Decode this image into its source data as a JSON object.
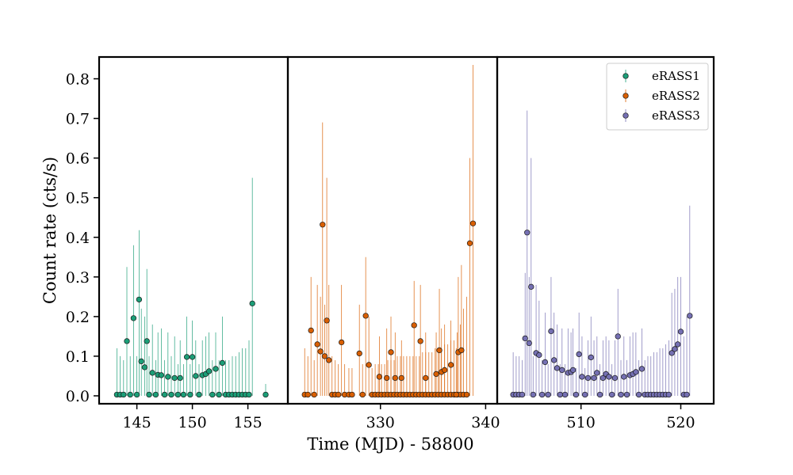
{
  "chart_data": {
    "type": "scatter",
    "xlabel": "Time (MJD) - 58800",
    "ylabel": "Count rate (cts/s)",
    "ylim": [
      -0.02,
      0.855
    ],
    "yticks": [
      0.0,
      0.1,
      0.2,
      0.3,
      0.4,
      0.5,
      0.6,
      0.7,
      0.8
    ],
    "ytick_labels": [
      "0.0",
      "0.1",
      "0.2",
      "0.3",
      "0.4",
      "0.5",
      "0.6",
      "0.7",
      "0.8"
    ],
    "legend_position": "top-right",
    "panels": [
      {
        "series_index": 0,
        "xlim": [
          141.6,
          158.6
        ],
        "xticks": [
          145,
          150,
          155
        ],
        "xtick_labels": [
          "145",
          "150",
          "155"
        ]
      },
      {
        "series_index": 1,
        "xlim": [
          321.2,
          341.1
        ],
        "xticks": [
          330,
          340
        ],
        "xtick_labels": [
          "330",
          "340"
        ]
      },
      {
        "series_index": 2,
        "xlim": [
          501.6,
          523.3
        ],
        "xticks": [
          510,
          520
        ],
        "xtick_labels": [
          "510",
          "520"
        ]
      }
    ],
    "series": [
      {
        "name": "eRASS1",
        "color": "#1b9e77",
        "points": [
          [
            143.2,
            0.003,
            0.12
          ],
          [
            143.5,
            0.003,
            0.1
          ],
          [
            143.8,
            0.003,
            0.09
          ],
          [
            144.1,
            0.138,
            0.325
          ],
          [
            144.4,
            0.003,
            0.1
          ],
          [
            144.7,
            0.196,
            0.38
          ],
          [
            145.0,
            0.003,
            0.1
          ],
          [
            145.2,
            0.243,
            0.418
          ],
          [
            145.4,
            0.087,
            0.22
          ],
          [
            145.7,
            0.072,
            0.2
          ],
          [
            145.9,
            0.138,
            0.32
          ],
          [
            146.1,
            0.003,
            0.1
          ],
          [
            146.4,
            0.058,
            0.18
          ],
          [
            146.7,
            0.003,
            0.09
          ],
          [
            146.9,
            0.053,
            0.16
          ],
          [
            147.2,
            0.052,
            0.17
          ],
          [
            147.5,
            0.003,
            0.09
          ],
          [
            147.8,
            0.048,
            0.16
          ],
          [
            148.1,
            0.003,
            0.1
          ],
          [
            148.4,
            0.045,
            0.15
          ],
          [
            148.7,
            0.003,
            0.08
          ],
          [
            148.9,
            0.045,
            0.14
          ],
          [
            149.2,
            0.003,
            0.08
          ],
          [
            149.5,
            0.098,
            0.2
          ],
          [
            149.8,
            0.003,
            0.08
          ],
          [
            150.0,
            0.098,
            0.19
          ],
          [
            150.3,
            0.05,
            0.14
          ],
          [
            150.6,
            0.003,
            0.08
          ],
          [
            150.9,
            0.052,
            0.14
          ],
          [
            151.2,
            0.055,
            0.15
          ],
          [
            151.5,
            0.062,
            0.16
          ],
          [
            151.8,
            0.003,
            0.09
          ],
          [
            152.1,
            0.068,
            0.16
          ],
          [
            152.4,
            0.003,
            0.09
          ],
          [
            152.7,
            0.083,
            0.2
          ],
          [
            153.0,
            0.003,
            0.09
          ],
          [
            153.3,
            0.003,
            0.09
          ],
          [
            153.6,
            0.003,
            0.1
          ],
          [
            153.9,
            0.003,
            0.1
          ],
          [
            154.2,
            0.003,
            0.11
          ],
          [
            154.5,
            0.003,
            0.12
          ],
          [
            154.8,
            0.003,
            0.12
          ],
          [
            155.1,
            0.003,
            0.14
          ],
          [
            155.4,
            0.233,
            0.55
          ],
          [
            156.6,
            0.003,
            0.03
          ]
        ]
      },
      {
        "name": "eRASS2",
        "color": "#d95f02",
        "points": [
          [
            322.8,
            0.003,
            0.12
          ],
          [
            323.1,
            0.003,
            0.1
          ],
          [
            323.4,
            0.165,
            0.3
          ],
          [
            323.7,
            0.003,
            0.09
          ],
          [
            324.0,
            0.13,
            0.28
          ],
          [
            324.3,
            0.112,
            0.25
          ],
          [
            324.5,
            0.432,
            0.69
          ],
          [
            324.7,
            0.1,
            0.23
          ],
          [
            324.9,
            0.19,
            0.55
          ],
          [
            325.1,
            0.09,
            0.28
          ],
          [
            325.4,
            0.003,
            0.1
          ],
          [
            325.7,
            0.003,
            0.09
          ],
          [
            326.0,
            0.003,
            0.08
          ],
          [
            326.3,
            0.135,
            0.28
          ],
          [
            326.6,
            0.003,
            0.08
          ],
          [
            327.0,
            0.003,
            0.07
          ],
          [
            327.3,
            0.003,
            0.07
          ],
          [
            328.0,
            0.107,
            0.23
          ],
          [
            328.3,
            0.003,
            0.08
          ],
          [
            328.6,
            0.202,
            0.35
          ],
          [
            328.9,
            0.078,
            0.2
          ],
          [
            329.2,
            0.003,
            0.07
          ],
          [
            329.5,
            0.003,
            0.08
          ],
          [
            329.8,
            0.003,
            0.08
          ],
          [
            330.1,
            0.003,
            0.08
          ],
          [
            330.4,
            0.003,
            0.08
          ],
          [
            330.7,
            0.003,
            0.09
          ],
          [
            331.0,
            0.003,
            0.09
          ],
          [
            331.3,
            0.003,
            0.09
          ],
          [
            331.6,
            0.003,
            0.1
          ],
          [
            331.9,
            0.003,
            0.1
          ],
          [
            332.2,
            0.003,
            0.1
          ],
          [
            332.5,
            0.003,
            0.1
          ],
          [
            332.8,
            0.003,
            0.1
          ],
          [
            333.1,
            0.003,
            0.1
          ],
          [
            333.4,
            0.003,
            0.1
          ],
          [
            333.7,
            0.003,
            0.1
          ],
          [
            334.0,
            0.003,
            0.11
          ],
          [
            334.3,
            0.003,
            0.11
          ],
          [
            334.6,
            0.003,
            0.11
          ],
          [
            334.9,
            0.003,
            0.11
          ],
          [
            335.2,
            0.003,
            0.12
          ],
          [
            335.5,
            0.003,
            0.12
          ],
          [
            335.8,
            0.003,
            0.12
          ],
          [
            336.1,
            0.003,
            0.13
          ],
          [
            336.4,
            0.003,
            0.13
          ],
          [
            336.7,
            0.003,
            0.14
          ],
          [
            337.0,
            0.003,
            0.14
          ],
          [
            337.3,
            0.003,
            0.16
          ],
          [
            337.6,
            0.003,
            0.18
          ],
          [
            337.9,
            0.003,
            0.22
          ],
          [
            338.2,
            0.003,
            0.25
          ],
          [
            338.5,
            0.385,
            0.6
          ],
          [
            338.8,
            0.435,
            0.835
          ],
          [
            329.9,
            0.048,
            0.15
          ],
          [
            330.6,
            0.045,
            0.17
          ],
          [
            331.0,
            0.11,
            0.2
          ],
          [
            331.4,
            0.045,
            0.16
          ],
          [
            332.0,
            0.045,
            0.14
          ],
          [
            333.2,
            0.178,
            0.29
          ],
          [
            333.8,
            0.138,
            0.28
          ],
          [
            334.3,
            0.045,
            0.16
          ],
          [
            335.3,
            0.055,
            0.16
          ],
          [
            335.6,
            0.115,
            0.27
          ],
          [
            335.8,
            0.06,
            0.17
          ],
          [
            336.1,
            0.065,
            0.18
          ],
          [
            336.7,
            0.078,
            0.19
          ],
          [
            337.2,
            0.003,
            0.12
          ],
          [
            337.4,
            0.11,
            0.3
          ],
          [
            337.7,
            0.115,
            0.33
          ]
        ]
      },
      {
        "name": "eRASS3",
        "color": "#7570b3",
        "points": [
          [
            503.2,
            0.003,
            0.11
          ],
          [
            503.5,
            0.003,
            0.1
          ],
          [
            503.8,
            0.003,
            0.1
          ],
          [
            504.1,
            0.003,
            0.09
          ],
          [
            504.4,
            0.145,
            0.31
          ],
          [
            504.6,
            0.412,
            0.72
          ],
          [
            504.8,
            0.133,
            0.3
          ],
          [
            505.0,
            0.275,
            0.6
          ],
          [
            505.2,
            0.003,
            0.1
          ],
          [
            505.5,
            0.108,
            0.28
          ],
          [
            505.8,
            0.103,
            0.24
          ],
          [
            506.1,
            0.003,
            0.09
          ],
          [
            506.4,
            0.085,
            0.21
          ],
          [
            506.7,
            0.003,
            0.08
          ],
          [
            507.0,
            0.163,
            0.3
          ],
          [
            507.3,
            0.09,
            0.21
          ],
          [
            507.6,
            0.07,
            0.18
          ],
          [
            507.9,
            0.003,
            0.08
          ],
          [
            508.1,
            0.065,
            0.17
          ],
          [
            508.4,
            0.003,
            0.08
          ],
          [
            508.7,
            0.058,
            0.17
          ],
          [
            509.0,
            0.06,
            0.16
          ],
          [
            509.2,
            0.065,
            0.17
          ],
          [
            509.5,
            0.003,
            0.07
          ],
          [
            509.8,
            0.105,
            0.21
          ],
          [
            510.1,
            0.048,
            0.15
          ],
          [
            510.4,
            0.003,
            0.07
          ],
          [
            510.7,
            0.045,
            0.14
          ],
          [
            511.0,
            0.097,
            0.2
          ],
          [
            511.3,
            0.045,
            0.14
          ],
          [
            511.6,
            0.058,
            0.15
          ],
          [
            511.9,
            0.003,
            0.08
          ],
          [
            512.2,
            0.045,
            0.14
          ],
          [
            512.5,
            0.055,
            0.15
          ],
          [
            512.8,
            0.048,
            0.14
          ],
          [
            513.1,
            0.003,
            0.08
          ],
          [
            513.4,
            0.045,
            0.14
          ],
          [
            513.7,
            0.15,
            0.27
          ],
          [
            514.0,
            0.003,
            0.09
          ],
          [
            514.3,
            0.048,
            0.15
          ],
          [
            514.6,
            0.003,
            0.09
          ],
          [
            514.9,
            0.052,
            0.15
          ],
          [
            515.2,
            0.055,
            0.16
          ],
          [
            515.5,
            0.06,
            0.16
          ],
          [
            515.8,
            0.003,
            0.09
          ],
          [
            516.1,
            0.068,
            0.17
          ],
          [
            516.4,
            0.003,
            0.09
          ],
          [
            516.7,
            0.003,
            0.1
          ],
          [
            517.0,
            0.003,
            0.1
          ],
          [
            517.3,
            0.003,
            0.11
          ],
          [
            517.6,
            0.003,
            0.11
          ],
          [
            517.9,
            0.003,
            0.12
          ],
          [
            518.2,
            0.003,
            0.12
          ],
          [
            518.5,
            0.003,
            0.13
          ],
          [
            518.8,
            0.003,
            0.14
          ],
          [
            519.1,
            0.108,
            0.26
          ],
          [
            519.4,
            0.118,
            0.27
          ],
          [
            519.7,
            0.13,
            0.3
          ],
          [
            520.0,
            0.162,
            0.3
          ],
          [
            520.3,
            0.003,
            0.15
          ],
          [
            520.6,
            0.003,
            0.2
          ],
          [
            520.9,
            0.202,
            0.48
          ]
        ]
      }
    ]
  }
}
